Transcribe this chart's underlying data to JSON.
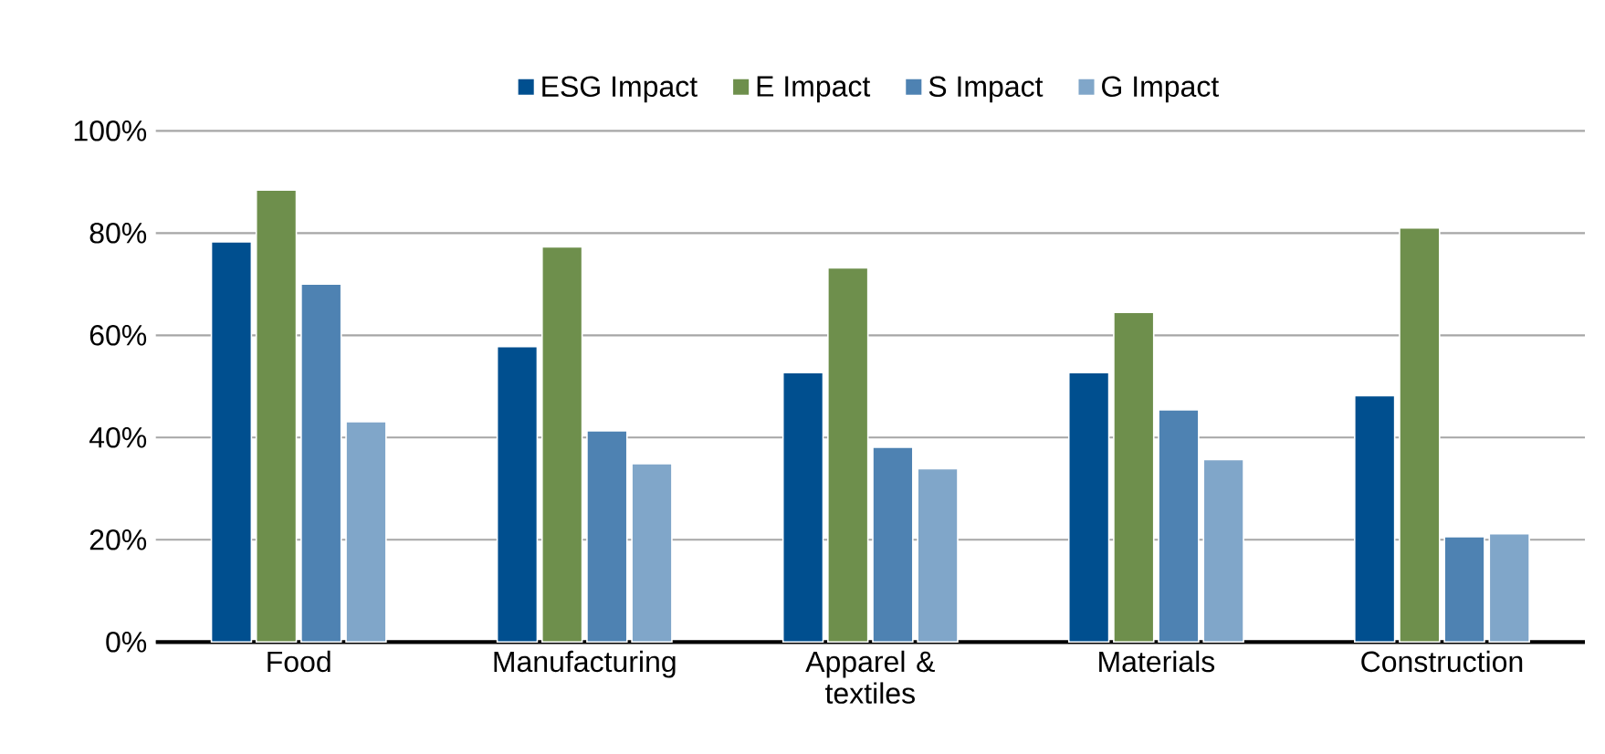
{
  "chart_data": {
    "type": "bar",
    "categories": [
      "Food",
      "Manufacturing",
      "Apparel & textiles",
      "Materials",
      "Construction"
    ],
    "series": [
      {
        "name": "ESG Impact",
        "color": "#004f8f",
        "values": [
          78.3,
          57.8,
          52.7,
          52.7,
          48.2
        ]
      },
      {
        "name": "E Impact",
        "color": "#6e8f4c",
        "values": [
          88.4,
          77.3,
          73.2,
          64.5,
          81.0
        ]
      },
      {
        "name": "S Impact",
        "color": "#4e82b2",
        "values": [
          70.0,
          41.3,
          38.1,
          45.4,
          20.6
        ]
      },
      {
        "name": "G Impact",
        "color": "#80a6c9",
        "values": [
          43.1,
          34.9,
          33.9,
          35.7,
          21.2
        ]
      }
    ],
    "ylim": [
      0,
      100
    ],
    "yticks": [
      {
        "value": 0,
        "label": "0%"
      },
      {
        "value": 20,
        "label": "20%"
      },
      {
        "value": 40,
        "label": "40%"
      },
      {
        "value": 60,
        "label": "60%"
      },
      {
        "value": 80,
        "label": "80%"
      },
      {
        "value": 100,
        "label": "100%"
      }
    ],
    "grid": "y",
    "legend": "top"
  }
}
